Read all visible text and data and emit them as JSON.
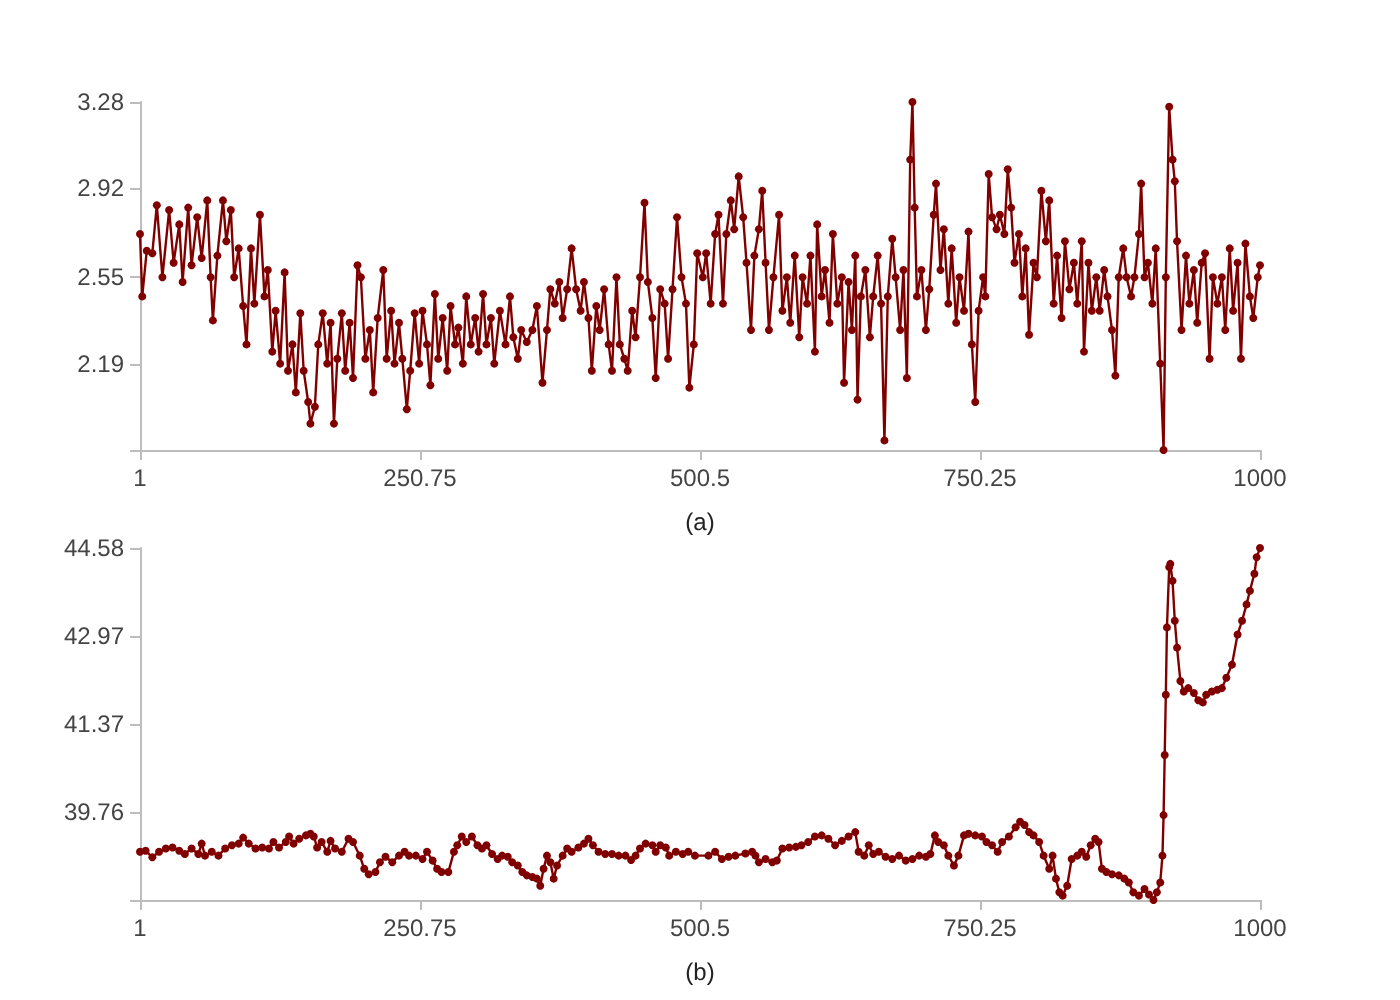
{
  "chart_data": [
    {
      "type": "line",
      "xlabel": "(a)",
      "color": "#800000",
      "marker": "circle",
      "xlim": [
        1,
        1000
      ],
      "xticks": [
        1,
        250.75,
        500.5,
        750.25,
        1000
      ],
      "ylim": [
        1.83,
        3.28
      ],
      "yticks": [
        {
          "value": 1.83,
          "label": null
        },
        2.19,
        2.55,
        2.92,
        3.28
      ],
      "x": [
        1,
        3,
        7,
        12,
        16,
        21,
        27,
        31,
        36,
        39,
        44,
        47,
        52,
        56,
        61,
        64,
        66,
        70,
        75,
        78,
        82,
        85,
        89,
        93,
        96,
        100,
        103,
        108,
        112,
        115,
        119,
        122,
        126,
        130,
        133,
        137,
        140,
        144,
        147,
        151,
        153,
        157,
        160,
        164,
        168,
        171,
        174,
        177,
        181,
        184,
        188,
        191,
        195,
        198,
        202,
        206,
        209,
        213,
        218,
        221,
        225,
        228,
        232,
        235,
        239,
        242,
        246,
        250,
        253,
        257,
        260,
        264,
        267,
        271,
        275,
        278,
        282,
        285,
        289,
        292,
        296,
        300,
        303,
        307,
        310,
        314,
        317,
        322,
        327,
        331,
        334,
        338,
        341,
        346,
        351,
        355,
        360,
        364,
        367,
        371,
        375,
        378,
        382,
        386,
        390,
        394,
        397,
        401,
        404,
        408,
        411,
        415,
        419,
        422,
        426,
        429,
        433,
        436,
        440,
        443,
        447,
        451,
        454,
        458,
        461,
        465,
        469,
        472,
        476,
        480,
        484,
        488,
        491,
        495,
        498,
        503,
        506,
        510,
        514,
        517,
        521,
        524,
        528,
        531,
        535,
        539,
        542,
        546,
        549,
        553,
        556,
        559,
        562,
        566,
        571,
        574,
        578,
        581,
        585,
        589,
        592,
        596,
        599,
        603,
        605,
        609,
        612,
        616,
        619,
        623,
        627,
        629,
        633,
        636,
        639,
        641,
        644,
        648,
        652,
        655,
        659,
        662,
        665,
        668,
        672,
        675,
        679,
        682,
        685,
        688,
        690,
        692,
        694,
        698,
        702,
        705,
        709,
        711,
        715,
        718,
        722,
        725,
        729,
        732,
        736,
        740,
        743,
        746,
        749,
        753,
        755,
        758,
        761,
        765,
        768,
        772,
        775,
        778,
        781,
        785,
        788,
        791,
        794,
        798,
        801,
        805,
        809,
        812,
        816,
        819,
        823,
        826,
        830,
        834,
        837,
        841,
        843,
        847,
        850,
        854,
        857,
        861,
        864,
        868,
        871,
        874,
        878,
        881,
        885,
        888,
        892,
        894,
        897,
        900,
        904,
        907,
        911,
        914,
        916,
        919,
        922,
        924,
        926,
        930,
        934,
        937,
        941,
        944,
        948,
        951,
        955,
        958,
        962,
        966,
        969,
        973,
        976,
        980,
        983,
        987,
        991,
        994,
        998,
        1000
      ],
      "values": [
        2.73,
        2.47,
        2.66,
        2.65,
        2.85,
        2.55,
        2.83,
        2.61,
        2.77,
        2.53,
        2.84,
        2.6,
        2.8,
        2.63,
        2.87,
        2.55,
        2.37,
        2.64,
        2.87,
        2.7,
        2.83,
        2.55,
        2.67,
        2.43,
        2.27,
        2.67,
        2.44,
        2.81,
        2.47,
        2.58,
        2.24,
        2.41,
        2.19,
        2.57,
        2.16,
        2.27,
        2.07,
        2.4,
        2.16,
        2.03,
        1.94,
        2.01,
        2.27,
        2.4,
        2.19,
        2.36,
        1.94,
        2.21,
        2.4,
        2.16,
        2.36,
        2.13,
        2.6,
        2.55,
        2.21,
        2.33,
        2.07,
        2.38,
        2.58,
        2.21,
        2.41,
        2.19,
        2.36,
        2.21,
        2.0,
        2.16,
        2.4,
        2.19,
        2.41,
        2.27,
        2.1,
        2.48,
        2.21,
        2.38,
        2.16,
        2.43,
        2.27,
        2.34,
        2.19,
        2.47,
        2.27,
        2.38,
        2.24,
        2.48,
        2.27,
        2.38,
        2.19,
        2.41,
        2.27,
        2.47,
        2.3,
        2.21,
        2.33,
        2.28,
        2.33,
        2.43,
        2.11,
        2.33,
        2.5,
        2.44,
        2.53,
        2.38,
        2.5,
        2.67,
        2.5,
        2.41,
        2.53,
        2.38,
        2.16,
        2.43,
        2.33,
        2.5,
        2.27,
        2.16,
        2.55,
        2.27,
        2.21,
        2.16,
        2.41,
        2.3,
        2.55,
        2.86,
        2.53,
        2.38,
        2.13,
        2.5,
        2.44,
        2.21,
        2.5,
        2.8,
        2.55,
        2.44,
        2.09,
        2.27,
        2.65,
        2.55,
        2.65,
        2.44,
        2.73,
        2.81,
        2.44,
        2.73,
        2.87,
        2.75,
        2.97,
        2.8,
        2.61,
        2.33,
        2.64,
        2.75,
        2.91,
        2.61,
        2.33,
        2.55,
        2.81,
        2.41,
        2.55,
        2.36,
        2.64,
        2.3,
        2.55,
        2.44,
        2.64,
        2.24,
        2.77,
        2.47,
        2.58,
        2.36,
        2.73,
        2.44,
        2.55,
        2.11,
        2.53,
        2.33,
        2.64,
        2.04,
        2.47,
        2.58,
        2.3,
        2.47,
        2.64,
        2.44,
        1.87,
        2.47,
        2.71,
        2.55,
        2.33,
        2.58,
        2.13,
        3.04,
        3.28,
        2.84,
        2.47,
        2.58,
        2.33,
        2.5,
        2.81,
        2.94,
        2.58,
        2.75,
        2.44,
        2.67,
        2.36,
        2.55,
        2.41,
        2.74,
        2.27,
        2.03,
        2.41,
        2.55,
        2.47,
        2.98,
        2.8,
        2.75,
        2.81,
        2.73,
        3.0,
        2.84,
        2.61,
        2.73,
        2.47,
        2.67,
        2.31,
        2.61,
        2.55,
        2.91,
        2.7,
        2.87,
        2.44,
        2.64,
        2.38,
        2.7,
        2.5,
        2.61,
        2.44,
        2.7,
        2.24,
        2.61,
        2.41,
        2.55,
        2.41,
        2.58,
        2.47,
        2.33,
        2.14,
        2.55,
        2.67,
        2.55,
        2.47,
        2.55,
        2.73,
        2.94,
        2.55,
        2.61,
        2.44,
        2.67,
        2.19,
        1.83,
        2.55,
        3.26,
        3.04,
        2.95,
        2.7,
        2.33,
        2.64,
        2.44,
        2.58,
        2.36,
        2.61,
        2.65,
        2.21,
        2.55,
        2.44,
        2.55,
        2.33,
        2.67,
        2.41,
        2.61,
        2.21,
        2.69,
        2.47,
        2.38,
        2.55,
        2.6
      ]
    },
    {
      "type": "line",
      "xlabel": "(b)",
      "color": "#800000",
      "marker": "circle",
      "xlim": [
        1,
        1000
      ],
      "xticks": [
        1,
        250.75,
        500.5,
        750.25,
        1000
      ],
      "ylim": [
        38.15,
        44.58
      ],
      "yticks": [
        {
          "value": 38.15,
          "label": null
        },
        39.76,
        41.37,
        42.97,
        44.58
      ],
      "x": [
        1,
        6,
        12,
        18,
        24,
        30,
        36,
        41,
        47,
        53,
        56,
        59,
        65,
        71,
        77,
        83,
        89,
        93,
        98,
        104,
        110,
        116,
        120,
        125,
        131,
        134,
        138,
        143,
        149,
        153,
        156,
        159,
        163,
        168,
        171,
        175,
        181,
        187,
        191,
        197,
        201,
        205,
        211,
        215,
        220,
        226,
        232,
        237,
        241,
        247,
        253,
        257,
        262,
        266,
        270,
        276,
        281,
        284,
        288,
        292,
        297,
        302,
        306,
        310,
        315,
        320,
        324,
        329,
        333,
        338,
        342,
        346,
        351,
        355,
        358,
        361,
        364,
        367,
        370,
        373,
        378,
        382,
        386,
        392,
        397,
        401,
        405,
        410,
        416,
        422,
        428,
        434,
        439,
        443,
        447,
        452,
        458,
        461,
        465,
        470,
        473,
        479,
        485,
        490,
        496,
        508,
        514,
        520,
        526,
        532,
        541,
        547,
        550,
        553,
        559,
        565,
        569,
        574,
        580,
        586,
        591,
        597,
        603,
        609,
        615,
        621,
        627,
        633,
        639,
        642,
        647,
        651,
        655,
        660,
        666,
        672,
        678,
        684,
        690,
        696,
        702,
        706,
        710,
        713,
        718,
        722,
        727,
        731,
        736,
        740,
        746,
        752,
        756,
        761,
        766,
        770,
        776,
        782,
        786,
        790,
        794,
        798,
        803,
        807,
        812,
        815,
        818,
        821,
        824,
        828,
        832,
        837,
        841,
        845,
        849,
        853,
        856,
        859,
        863,
        868,
        874,
        879,
        883,
        887,
        892,
        897,
        901,
        905,
        908,
        911,
        913,
        914,
        915,
        916,
        917,
        919,
        920,
        922,
        924,
        926,
        929,
        932,
        936,
        941,
        945,
        949,
        952,
        957,
        962,
        966,
        970,
        975,
        980,
        984,
        988,
        991,
        995,
        997,
        1000
      ],
      "values": [
        39.03,
        39.05,
        38.93,
        39.03,
        39.09,
        39.11,
        39.05,
        38.99,
        39.09,
        38.99,
        39.18,
        38.96,
        39.03,
        38.96,
        39.09,
        39.15,
        39.18,
        39.29,
        39.18,
        39.09,
        39.11,
        39.09,
        39.21,
        39.11,
        39.21,
        39.31,
        39.18,
        39.27,
        39.33,
        39.36,
        39.31,
        39.11,
        39.21,
        39.03,
        39.23,
        39.09,
        39.03,
        39.27,
        39.21,
        38.96,
        38.72,
        38.62,
        38.66,
        38.84,
        38.94,
        38.84,
        38.96,
        39.03,
        38.96,
        38.96,
        38.9,
        39.03,
        38.87,
        38.72,
        38.66,
        38.66,
        39.03,
        39.15,
        39.31,
        39.21,
        39.31,
        39.15,
        39.09,
        39.15,
        38.99,
        38.9,
        38.96,
        38.94,
        38.84,
        38.78,
        38.66,
        38.6,
        38.57,
        38.54,
        38.41,
        38.72,
        38.96,
        38.84,
        38.54,
        38.78,
        38.96,
        39.09,
        39.03,
        39.11,
        39.18,
        39.27,
        39.15,
        39.03,
        38.99,
        38.99,
        38.96,
        38.96,
        38.88,
        38.96,
        39.09,
        39.18,
        39.15,
        39.03,
        39.15,
        39.11,
        38.96,
        39.03,
        38.99,
        39.03,
        38.96,
        38.96,
        39.03,
        38.9,
        38.94,
        38.96,
        39.0,
        39.03,
        38.96,
        38.84,
        38.9,
        38.84,
        38.87,
        39.09,
        39.11,
        39.12,
        39.15,
        39.21,
        39.31,
        39.33,
        39.27,
        39.15,
        39.23,
        39.31,
        39.39,
        39.03,
        38.96,
        39.15,
        38.99,
        39.03,
        38.94,
        38.9,
        38.96,
        38.87,
        38.9,
        38.96,
        38.94,
        38.99,
        39.33,
        39.21,
        39.15,
        38.96,
        38.78,
        38.96,
        39.33,
        39.36,
        39.33,
        39.31,
        39.21,
        39.15,
        39.03,
        39.21,
        39.31,
        39.48,
        39.58,
        39.52,
        39.39,
        39.33,
        39.21,
        38.96,
        38.72,
        38.96,
        38.54,
        38.29,
        38.23,
        38.41,
        38.9,
        38.96,
        39.03,
        38.94,
        39.15,
        39.27,
        39.21,
        38.72,
        38.66,
        38.62,
        38.6,
        38.54,
        38.47,
        38.29,
        38.23,
        38.35,
        38.25,
        38.15,
        38.29,
        38.47,
        38.96,
        39.7,
        40.8,
        41.9,
        43.13,
        44.23,
        44.29,
        43.98,
        43.25,
        42.76,
        42.15,
        41.96,
        42.02,
        41.93,
        41.8,
        41.76,
        41.9,
        41.96,
        41.99,
        42.02,
        42.21,
        42.45,
        43.0,
        43.25,
        43.55,
        43.8,
        44.11,
        44.41,
        44.58
      ]
    }
  ]
}
